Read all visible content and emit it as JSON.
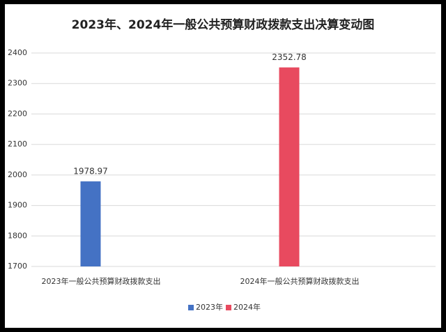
{
  "chart_data": {
    "type": "bar",
    "title": "2023年、2024年一般公共预算财政拨款支出决算变动图",
    "categories": [
      "2023年一般公共预算财政拨款支出",
      "2024年一般公共预算财政拨款支出"
    ],
    "series": [
      {
        "name": "2023年",
        "color": "#4472c4",
        "values": [
          1978.97,
          null
        ]
      },
      {
        "name": "2024年",
        "color": "#e84a5f",
        "values": [
          null,
          2352.78
        ]
      }
    ],
    "ylim": [
      1700,
      2400
    ],
    "yticks": [
      1700,
      1800,
      1900,
      2000,
      2100,
      2200,
      2300,
      2400
    ],
    "grid": true,
    "legend": "bottom"
  }
}
